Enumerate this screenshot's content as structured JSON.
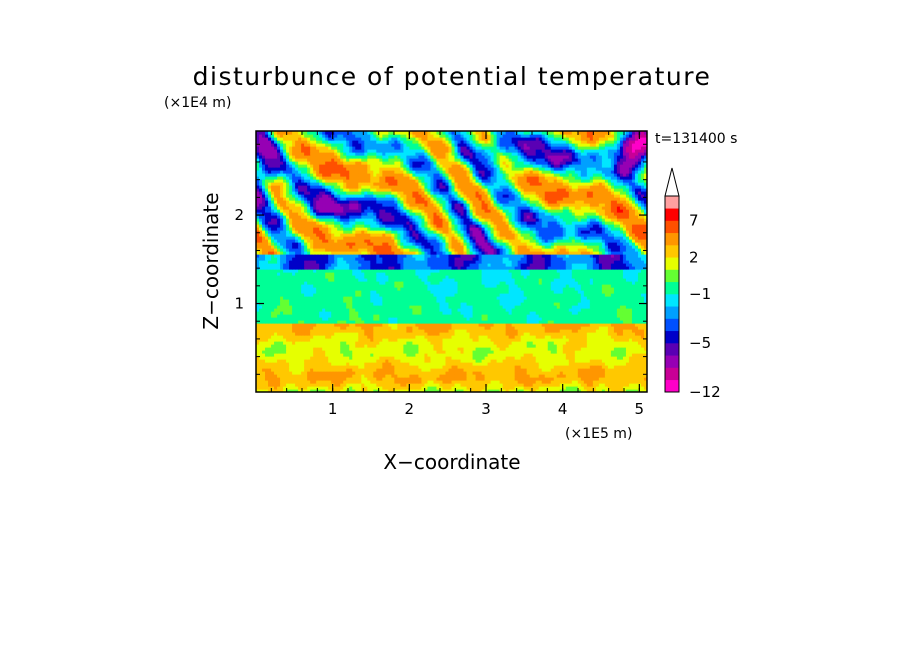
{
  "chart_data": {
    "type": "heatmap",
    "title": "disturbunce of potential temperature",
    "time_label": "t=131400 s",
    "xlabel": "X−coordinate",
    "ylabel": "Z−coordinate",
    "x_unit": "(×1E5 m)",
    "y_unit": "(×1E4 m)",
    "xlim": [
      0,
      5.1
    ],
    "ylim": [
      0,
      2.95
    ],
    "x_ticks": [
      1,
      2,
      3,
      4,
      5
    ],
    "y_ticks": [
      1,
      2
    ],
    "colorbar": {
      "tick_labels": [
        {
          "value": 7,
          "label": "7"
        },
        {
          "value": 2,
          "label": "2"
        },
        {
          "value": -1,
          "label": "−1"
        },
        {
          "value": -5,
          "label": "−5"
        },
        {
          "value": -12,
          "label": "−12"
        }
      ],
      "levels": [
        -12,
        -10,
        -8,
        -6,
        -5,
        -4,
        -3,
        -2,
        -1,
        0,
        1,
        2,
        3,
        5,
        7,
        9,
        11
      ],
      "colors": [
        "#ff00c8",
        "#c80096",
        "#9600b4",
        "#5a00b4",
        "#0000c8",
        "#0050ff",
        "#00a0ff",
        "#00e6ff",
        "#00ff96",
        "#64ff32",
        "#e6ff00",
        "#ffc800",
        "#ff9600",
        "#ff5000",
        "#ff0000",
        "#ffa0a0"
      ],
      "extend_top": true
    },
    "field_description": {
      "z_0_to_0.8": "weak positive 1 to 3",
      "z_0.8_to_1.5": "weak negative -1 to 0",
      "z_1.3_to_1.5": "negative band -3 to -5",
      "z_1.5_to_2.9": "alternating positive 2 to 7 and negative -2 to -8 wavy structures",
      "upper_right_max_negative": -12
    }
  }
}
